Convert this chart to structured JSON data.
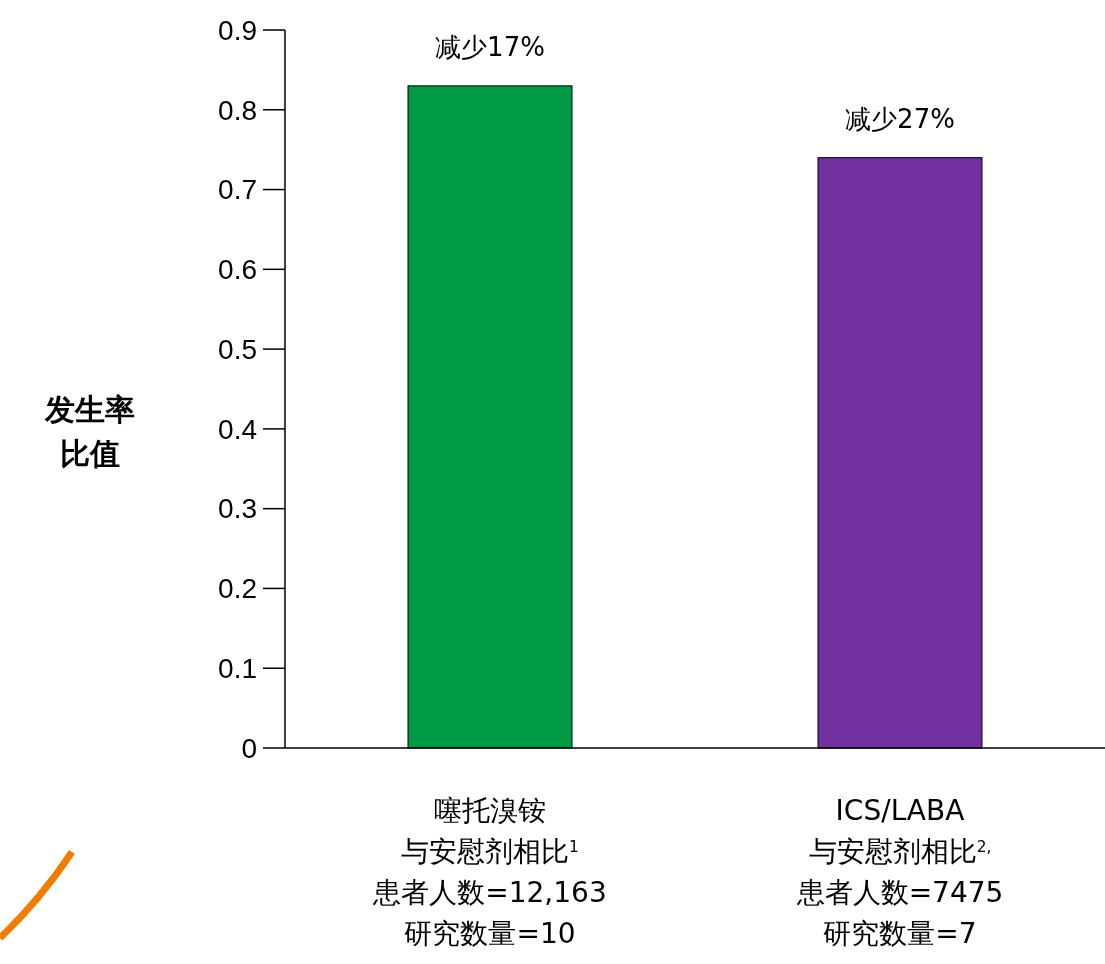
{
  "chart_data": {
    "type": "bar",
    "ylabel": "发生率比值",
    "categories": [
      "噻托溴铵与安慰剂相比$^{1}$\n患者人数=12,163\n研究数量=10",
      "ICS/LABA\n与安慰剂相比$^{2,}$\n患者人数=7475\n研究数量=7"
    ],
    "values": [
      0.83,
      0.74
    ],
    "colors": [
      "#009a44",
      "#7030a0"
    ],
    "value_labels": [
      "减少17%",
      "减少27%"
    ],
    "ylim": [
      0,
      0.9
    ],
    "yticks": [
      0,
      0.1,
      0.2,
      0.3,
      0.4,
      0.5,
      0.6,
      0.7,
      0.8,
      0.9
    ],
    "grid": false
  }
}
